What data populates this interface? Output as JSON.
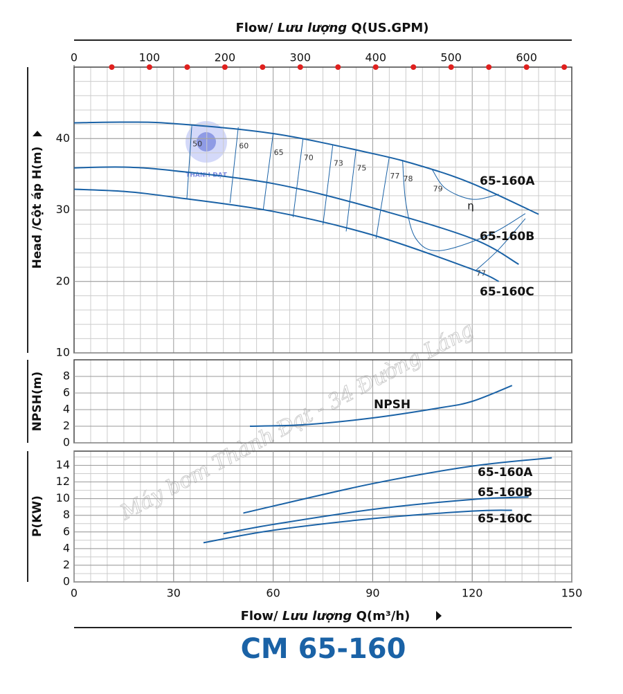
{
  "title": "CM 65-160",
  "watermark": "Máy bơm Thành Đạt - 34 Đường Láng",
  "logo_text": "THÀNH ĐẠT",
  "chart_data": [
    {
      "type": "line",
      "ylabel": "Head /Cột áp H(m)",
      "x2label": {
        "prefix": "Flow/",
        "italic": "Lưu lượng",
        "suffix": "Q(US.GPM)"
      },
      "x2lim": [
        0,
        660
      ],
      "x2ticks": [
        0,
        100,
        200,
        300,
        400,
        500,
        600
      ],
      "x2_minor_ticks": [
        50,
        100,
        150,
        200,
        250,
        300,
        350,
        400,
        450,
        500,
        550,
        600,
        650
      ],
      "x2_minor_color": "#e0201e",
      "xlim": [
        0,
        150
      ],
      "ylim": [
        10,
        50
      ],
      "yticks": [
        10,
        20,
        30,
        40
      ],
      "grid": true,
      "grid_minor": {
        "x": 5,
        "y": 2
      },
      "series": [
        {
          "name": "65-160A",
          "color": "#1a62a6",
          "x": [
            0,
            15,
            30,
            60,
            90,
            105,
            120,
            140
          ],
          "values": [
            42.2,
            42.3,
            42.1,
            40.7,
            37.9,
            36.1,
            33.7,
            29.4
          ]
        },
        {
          "name": "65-160B",
          "color": "#1a62a6",
          "x": [
            0,
            15,
            30,
            60,
            90,
            120,
            134
          ],
          "values": [
            35.9,
            36.0,
            35.5,
            33.7,
            30.3,
            26.0,
            22.4
          ]
        },
        {
          "name": "65-160C",
          "color": "#1a62a6",
          "x": [
            0,
            15,
            30,
            60,
            90,
            120,
            128
          ],
          "values": [
            32.9,
            32.6,
            31.8,
            29.8,
            26.5,
            21.7,
            20.0
          ]
        }
      ],
      "efficiency_color": "#1a62a6",
      "efficiency": [
        {
          "value": 50,
          "x": [
            35.5,
            34
          ],
          "values": [
            41.9,
            31.6
          ]
        },
        {
          "value": 60,
          "x": [
            49.5,
            47
          ],
          "values": [
            41.6,
            31.0
          ]
        },
        {
          "value": 65,
          "x": [
            60,
            57
          ],
          "values": [
            40.7,
            30.0
          ]
        },
        {
          "value": 70,
          "x": [
            69,
            66
          ],
          "values": [
            40.0,
            29.0
          ]
        },
        {
          "value": 73,
          "x": [
            78,
            75
          ],
          "values": [
            39.2,
            27.9
          ]
        },
        {
          "value": 75,
          "x": [
            85,
            82
          ],
          "values": [
            38.5,
            27.0
          ]
        },
        {
          "value": 77,
          "x": [
            95,
            91
          ],
          "values": [
            37.4,
            26.0
          ]
        },
        {
          "value": 78,
          "x": [
            99,
            100,
            103,
            110,
            125,
            136
          ],
          "values": [
            37.0,
            31.0,
            26.0,
            24.3,
            26.5,
            29.5
          ]
        },
        {
          "value": 79,
          "x": [
            108,
            112,
            120,
            128
          ],
          "values": [
            35.6,
            33.0,
            31.5,
            32.2
          ]
        },
        {
          "value": 77,
          "x": [
            121,
            128,
            136
          ],
          "values": [
            21.5,
            24.5,
            28.8
          ]
        }
      ],
      "annotation": "η"
    },
    {
      "type": "line",
      "ylabel": "NPSH(m)",
      "xlim": [
        0,
        150
      ],
      "ylim": [
        0,
        10
      ],
      "yticks": [
        0,
        2,
        4,
        6,
        8
      ],
      "grid": true,
      "grid_minor": {
        "x": 5,
        "y": 2
      },
      "series": [
        {
          "name": "NPSH",
          "color": "#1a62a6",
          "x": [
            53,
            70,
            90,
            110,
            120,
            132
          ],
          "values": [
            2.0,
            2.2,
            3.0,
            4.2,
            5.0,
            6.9
          ]
        }
      ]
    },
    {
      "type": "line",
      "ylabel": "P(KW)",
      "xlabel": {
        "prefix": "Flow/",
        "italic": "Lưu lượng",
        "suffix": "Q(m³/h)"
      },
      "xlim": [
        0,
        150
      ],
      "xticks": [
        0,
        30,
        60,
        90,
        120,
        150
      ],
      "ylim": [
        0,
        15.7
      ],
      "yticks": [
        0,
        2,
        4,
        6,
        8,
        10,
        12,
        14
      ],
      "grid": true,
      "grid_minor": {
        "x": 5,
        "y": 1
      },
      "series": [
        {
          "name": "65-160A",
          "color": "#1a62a6",
          "x": [
            51,
            60,
            90,
            120,
            144
          ],
          "values": [
            8.26,
            9.1,
            11.8,
            13.9,
            14.9
          ]
        },
        {
          "name": "65-160B",
          "color": "#1a62a6",
          "x": [
            45,
            60,
            90,
            120,
            137
          ],
          "values": [
            5.8,
            6.9,
            8.7,
            9.9,
            10.2
          ]
        },
        {
          "name": "65-160C",
          "color": "#1a62a6",
          "x": [
            39,
            60,
            90,
            120,
            132
          ],
          "values": [
            4.7,
            6.2,
            7.6,
            8.5,
            8.6
          ]
        }
      ]
    }
  ]
}
